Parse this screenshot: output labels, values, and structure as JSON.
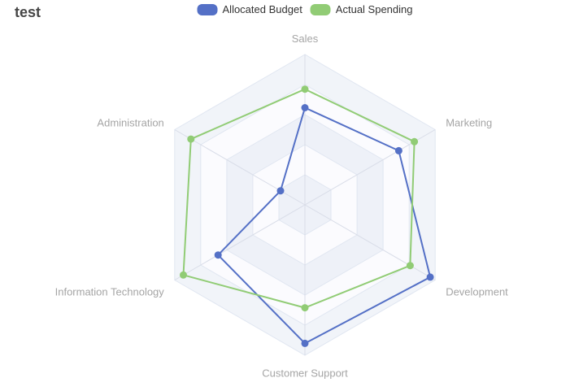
{
  "title": "test",
  "legend": [
    {
      "label": "Allocated Budget",
      "color": "#5470c6"
    },
    {
      "label": "Actual Spending",
      "color": "#91cc75"
    }
  ],
  "chart_data": {
    "type": "radar",
    "shape": "polygon",
    "levels": 5,
    "legend_position": "top",
    "grid_line_color": "#e0e6f1",
    "axis_line_color": "#d9dde8",
    "axis_label_color": "#a5a5a5",
    "split_area_colors": [
      "rgba(210,219,235,0.30)",
      "rgba(252,252,254,0.90)"
    ],
    "indicators": [
      {
        "name": "Sales",
        "max": 6500
      },
      {
        "name": "Administration",
        "max": 16000
      },
      {
        "name": "Information Technology",
        "max": 30000
      },
      {
        "name": "Customer Support",
        "max": 38000
      },
      {
        "name": "Development",
        "max": 52000
      },
      {
        "name": "Marketing",
        "max": 25000
      }
    ],
    "series": [
      {
        "name": "Allocated Budget",
        "color": "#5470c6",
        "values": [
          4200,
          3000,
          20000,
          35000,
          50000,
          18000
        ]
      },
      {
        "name": "Actual Spending",
        "color": "#91cc75",
        "values": [
          5000,
          14000,
          28000,
          26000,
          42000,
          21000
        ]
      }
    ]
  }
}
